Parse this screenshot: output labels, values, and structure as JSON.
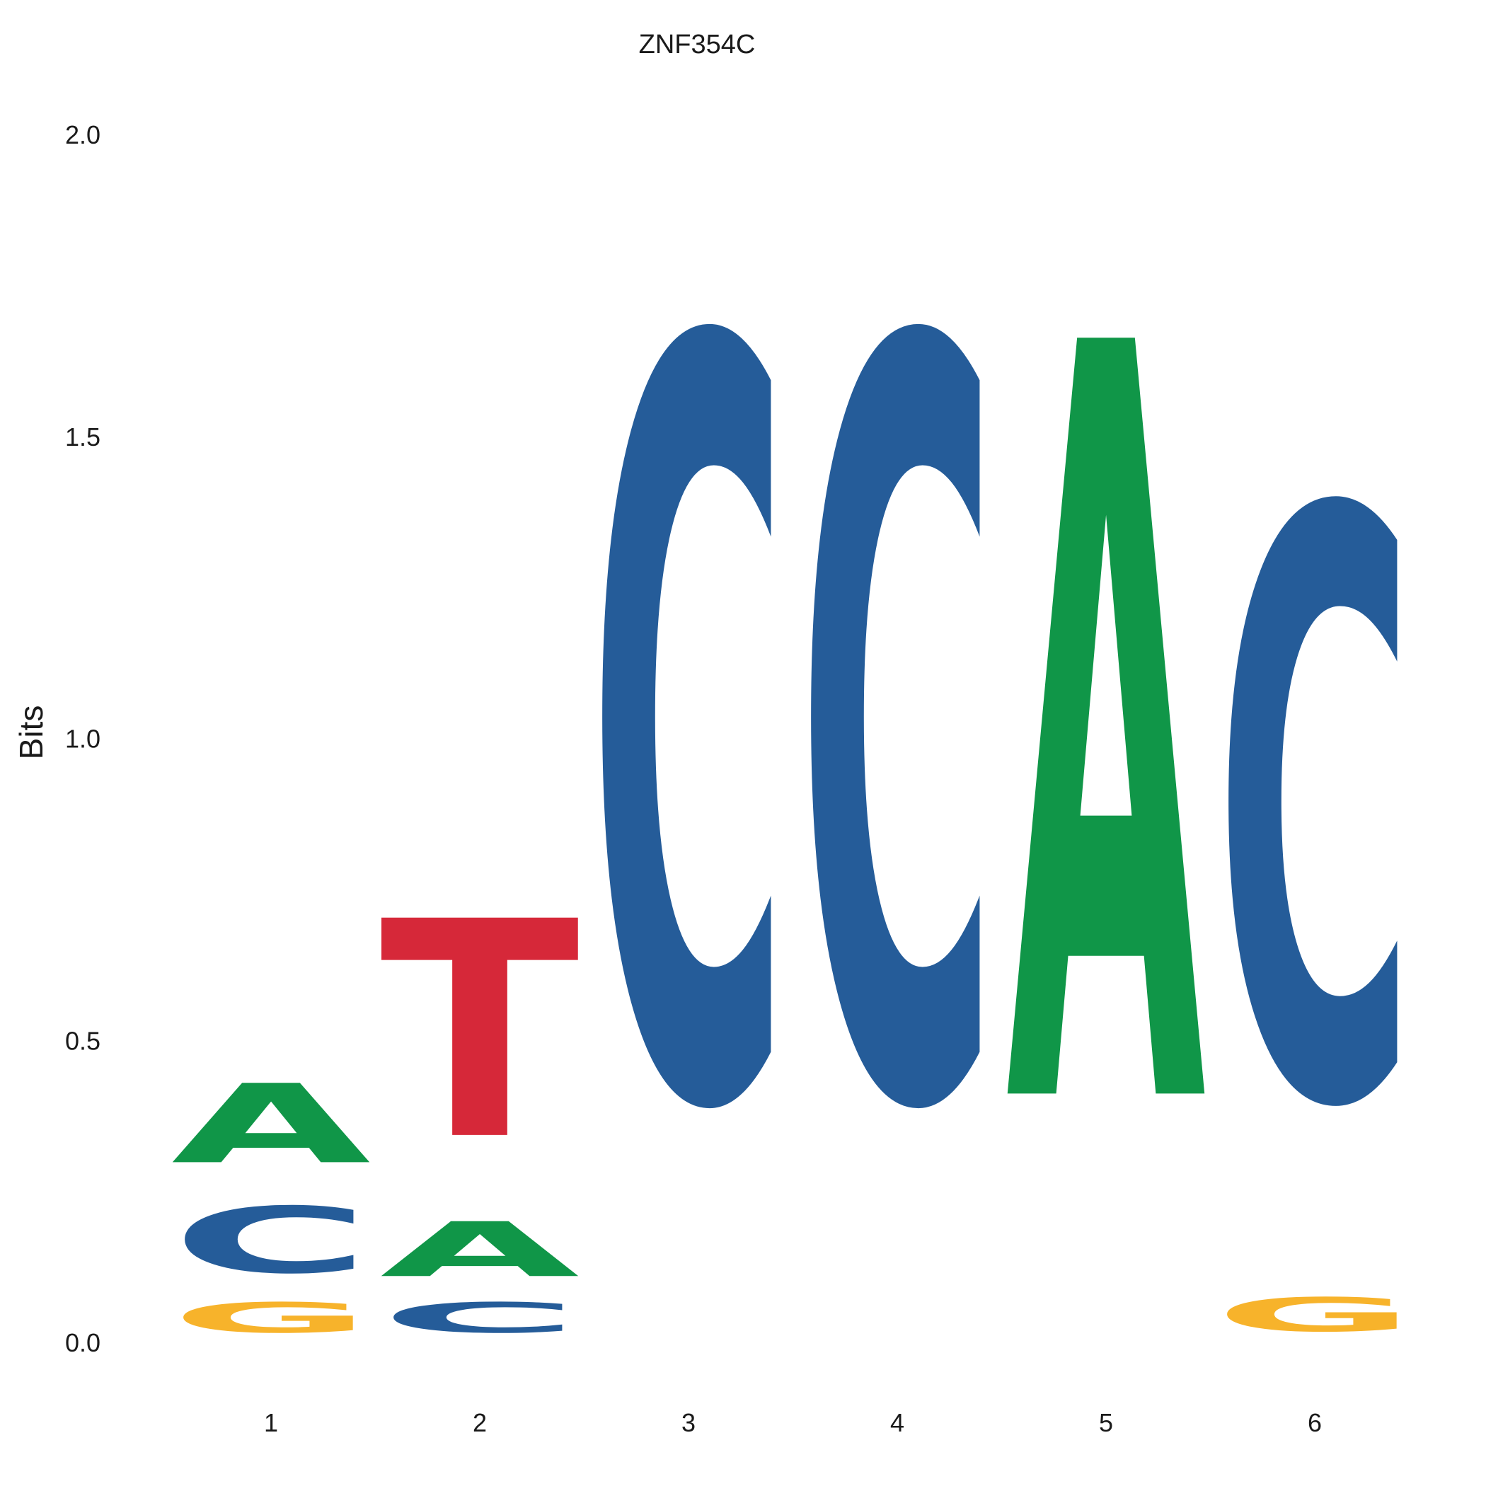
{
  "chart_data": {
    "type": "sequence-logo",
    "title": "ZNF354C",
    "ylabel": "Bits",
    "xlabel": "",
    "ylim": [
      0,
      2
    ],
    "yticks": [
      "0.0",
      "0.5",
      "1.0",
      "1.5",
      "2.0"
    ],
    "positions": [
      "1",
      "2",
      "3",
      "4",
      "5",
      "6"
    ],
    "grid": false,
    "colors": {
      "A": "#109648",
      "C": "#255C99",
      "G": "#F7B32B",
      "T": "#D62839"
    },
    "stacks": [
      [
        {
          "letter": "G",
          "bits": 0.08
        },
        {
          "letter": "C",
          "bits": 0.175
        },
        {
          "letter": "A",
          "bits": 0.21
        }
      ],
      [
        {
          "letter": "C",
          "bits": 0.08
        },
        {
          "letter": "A",
          "bits": 0.145
        },
        {
          "letter": "T",
          "bits": 0.575
        }
      ],
      [
        {
          "letter": "C",
          "bits": 2.0
        }
      ],
      [
        {
          "letter": "C",
          "bits": 2.0
        }
      ],
      [
        {
          "letter": "A",
          "bits": 2.0
        }
      ],
      [
        {
          "letter": "G",
          "bits": 0.09
        },
        {
          "letter": "C",
          "bits": 1.555
        }
      ]
    ]
  }
}
